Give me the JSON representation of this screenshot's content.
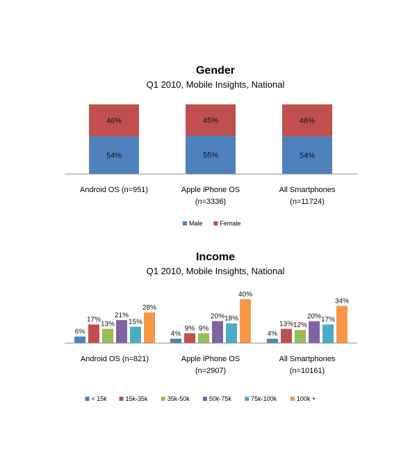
{
  "chart_data": [
    {
      "type": "bar",
      "stacked": true,
      "percent": true,
      "title": "Gender",
      "subtitle": "Q1 2010, Mobile Insights, National",
      "categories": [
        [
          "Android OS (n=951)"
        ],
        [
          "Apple iPhone OS",
          "(n=3336)"
        ],
        [
          "All Smartphones",
          "(n=11724)"
        ]
      ],
      "series": [
        {
          "name": "Male",
          "values": [
            54,
            55,
            54
          ],
          "color": "#4F81BD"
        },
        {
          "name": "Female",
          "values": [
            46,
            45,
            46
          ],
          "color": "#C0504D"
        }
      ],
      "ylim": [
        0,
        100
      ],
      "grid": false,
      "legend": "bottom",
      "data_labels": [
        "54%",
        "55%",
        "54%",
        "46%",
        "45%",
        "46%"
      ]
    },
    {
      "type": "bar",
      "stacked": false,
      "title": "Income",
      "subtitle": "Q1 2010, Mobile Insights, National",
      "categories": [
        [
          "Android OS (n=821)"
        ],
        [
          "Apple iPhone OS",
          "(n=2907)"
        ],
        [
          "All Smartphones",
          "(n=10161)"
        ]
      ],
      "series": [
        {
          "name": "< 15k",
          "values": [
            6,
            4,
            4
          ],
          "color": "#4F81BD"
        },
        {
          "name": "15k-35k",
          "values": [
            17,
            9,
            13
          ],
          "color": "#C0504D"
        },
        {
          "name": "35k-50k",
          "values": [
            13,
            9,
            12
          ],
          "color": "#9BBB59"
        },
        {
          "name": "50k-75k",
          "values": [
            21,
            20,
            20
          ],
          "color": "#8064A2"
        },
        {
          "name": "75k-100k",
          "values": [
            15,
            18,
            17
          ],
          "color": "#4BACC6"
        },
        {
          "name": "100k +",
          "values": [
            28,
            40,
            34
          ],
          "color": "#F79646"
        }
      ],
      "ylim": [
        0,
        40
      ],
      "grid": false,
      "legend": "bottom"
    }
  ]
}
